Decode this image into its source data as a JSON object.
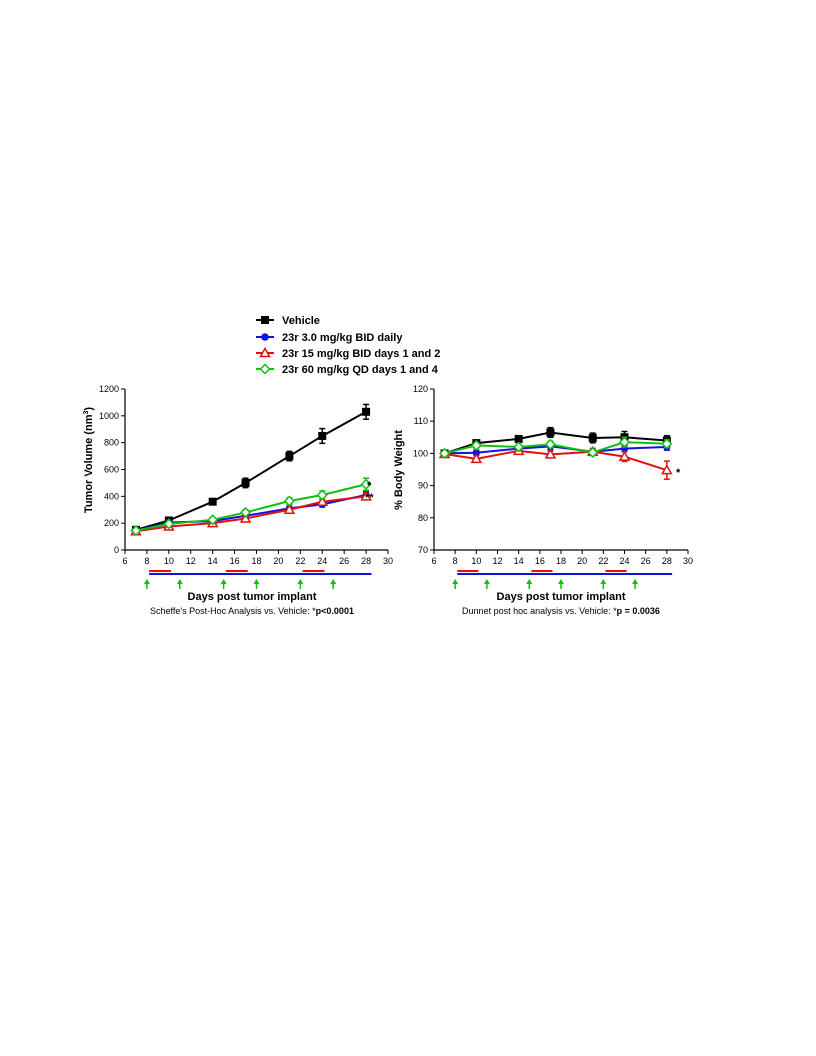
{
  "legend": [
    {
      "label": "Vehicle",
      "color": "#000000",
      "marker": "square-filled"
    },
    {
      "label": "23r 3.0 mg/kg BID daily",
      "color": "#1010e0",
      "marker": "circle-filled"
    },
    {
      "label": "23r 15 mg/kg BID days 1 and 2",
      "color": "#e01010",
      "marker": "triangle-open"
    },
    {
      "label": "23r 60 mg/kg QD days 1 and 4",
      "color": "#10c010",
      "marker": "diamond-open"
    }
  ],
  "chart_data": [
    {
      "type": "line",
      "xlabel": "Days post tumor implant",
      "ylabel": "Tumor Volume (nm",
      "ylabel_sup": "3",
      "ylabel_close": ")",
      "xlim": [
        6,
        30
      ],
      "ylim": [
        0,
        1200
      ],
      "xticks": [
        "6",
        "8",
        "10",
        "12",
        "14",
        "16",
        "18",
        "20",
        "22",
        "24",
        "26",
        "28",
        "30"
      ],
      "yticks": [
        "0",
        "200",
        "400",
        "600",
        "800",
        "1000",
        "1200"
      ],
      "x": [
        7,
        10,
        14,
        17,
        21,
        24,
        28
      ],
      "series": [
        {
          "name": "Vehicle",
          "values": [
            150,
            220,
            360,
            500,
            700,
            850,
            1030
          ],
          "err": [
            10,
            15,
            20,
            35,
            35,
            55,
            55
          ]
        },
        {
          "name": "23r 3.0 mg/kg BID daily",
          "values": [
            145,
            205,
            215,
            255,
            310,
            340,
            410
          ],
          "err": [
            8,
            10,
            12,
            15,
            15,
            20,
            25
          ]
        },
        {
          "name": "23r 15 mg/kg BID days 1 and 2",
          "values": [
            140,
            175,
            200,
            235,
            300,
            360,
            400
          ],
          "err": [
            8,
            10,
            12,
            15,
            15,
            20,
            25
          ]
        },
        {
          "name": "23r 60 mg/kg QD days 1 and 4",
          "values": [
            145,
            195,
            225,
            280,
            365,
            410,
            490
          ],
          "err": [
            10,
            12,
            15,
            20,
            25,
            30,
            45
          ]
        }
      ],
      "annotations": [
        "*",
        "**"
      ],
      "footnote_prefix": "Scheffe's Post-Hoc Analysis vs. Vehicle: *",
      "footnote_value": "p<0.0001",
      "grid": false
    },
    {
      "type": "line",
      "xlabel": "Days post tumor implant",
      "ylabel": "% Body Weight",
      "xlim": [
        6,
        30
      ],
      "ylim": [
        70,
        120
      ],
      "xticks": [
        "6",
        "8",
        "10",
        "12",
        "14",
        "16",
        "18",
        "20",
        "22",
        "24",
        "26",
        "28",
        "30"
      ],
      "yticks": [
        "70",
        "80",
        "90",
        "100",
        "110",
        "120"
      ],
      "x": [
        7,
        10,
        14,
        17,
        21,
        24,
        28
      ],
      "series": [
        {
          "name": "Vehicle",
          "values": [
            100,
            103.2,
            104.5,
            106.5,
            104.8,
            105,
            104
          ],
          "err": [
            0.5,
            0.8,
            0.8,
            1.5,
            1.5,
            1.8,
            1.5
          ]
        },
        {
          "name": "23r 3.0 mg/kg BID daily",
          "values": [
            100,
            100.2,
            101.5,
            102.2,
            100.5,
            101.5,
            102
          ],
          "err": [
            0.5,
            0.8,
            0.8,
            1.0,
            1.0,
            1.0,
            1.0
          ]
        },
        {
          "name": "23r 15 mg/kg BID days 1 and 2",
          "values": [
            99.8,
            98.3,
            100.8,
            99.7,
            100.5,
            99,
            94.8
          ],
          "err": [
            0.5,
            1.0,
            1.0,
            1.0,
            1.0,
            1.5,
            2.8
          ]
        },
        {
          "name": "23r 60 mg/kg QD days 1 and 4",
          "values": [
            100,
            102.5,
            102,
            102.8,
            100.3,
            103.5,
            103
          ],
          "err": [
            0.5,
            0.8,
            0.8,
            1.0,
            1.0,
            1.5,
            1.2
          ]
        }
      ],
      "annotations": [
        "*"
      ],
      "footnote_prefix": "Dunnet post hoc analysis vs. Vehicle: *",
      "footnote_value": "p = 0.0036",
      "grid": false
    }
  ],
  "dosing": {
    "red_segments": [
      [
        8.2,
        10.2
      ],
      [
        15.2,
        17.2
      ],
      [
        22.2,
        24.2
      ]
    ],
    "blue_span": [
      8.2,
      28.5
    ],
    "green_arrow_days": [
      8,
      11,
      15,
      18,
      22,
      25
    ],
    "red_color": "#e01010",
    "blue_color": "#1010e0",
    "green_color": "#10c010"
  }
}
